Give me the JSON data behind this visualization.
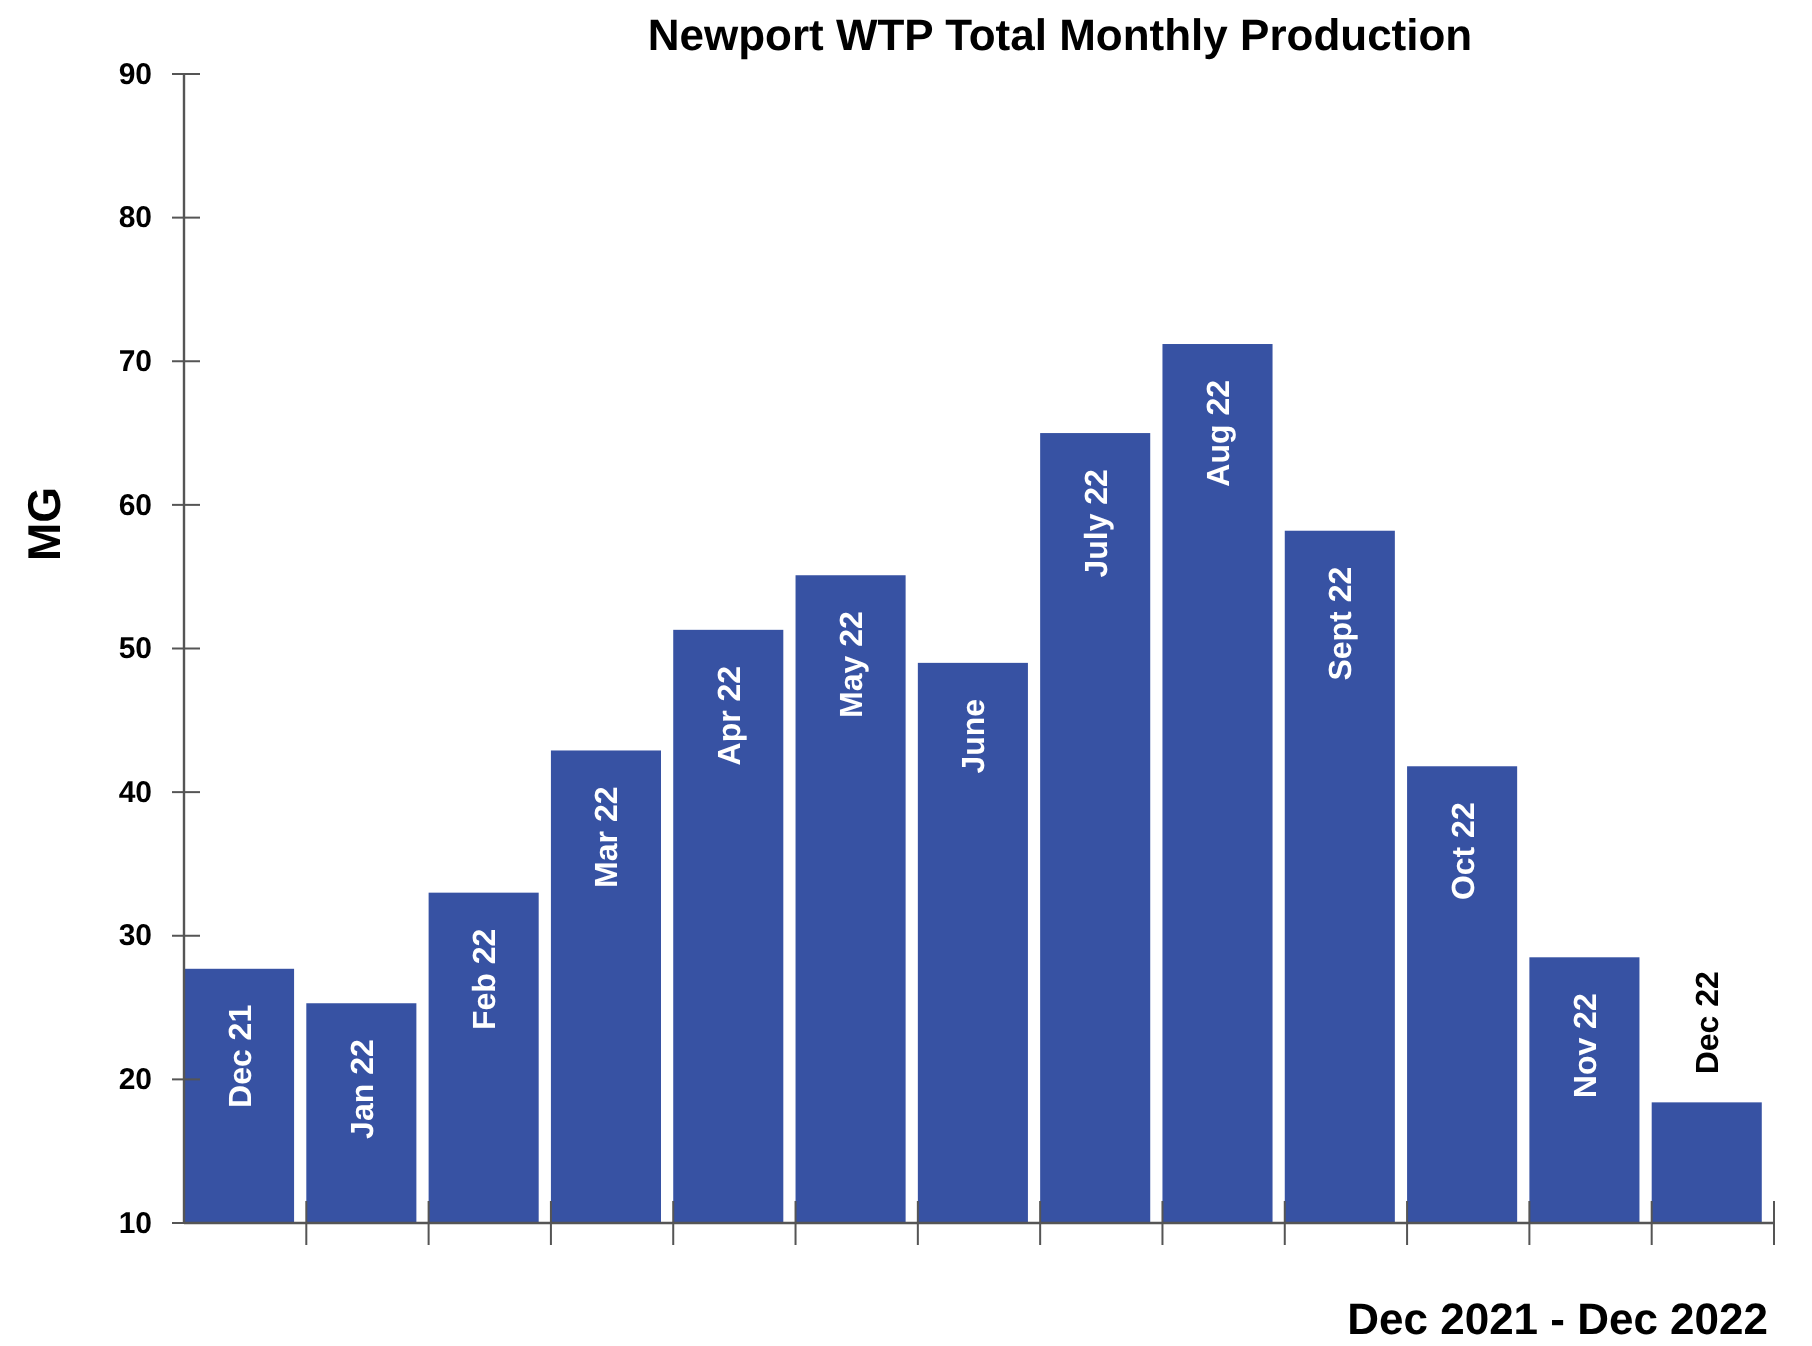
{
  "chart_data": {
    "type": "bar",
    "title": "Newport WTP Total Monthly Production",
    "xlabel": "Dec 2021 - Dec 2022",
    "ylabel": "MG",
    "categories": [
      "Dec 21",
      "Jan 22",
      "Feb 22",
      "Mar 22",
      "Apr 22",
      "May 22",
      "June",
      "July 22",
      "Aug 22",
      "Sept 22",
      "Oct 22",
      "Nov 22",
      "Dec 22"
    ],
    "values": [
      27.7,
      25.3,
      33.0,
      42.9,
      51.3,
      55.1,
      49.0,
      65.0,
      71.2,
      58.2,
      41.8,
      28.5,
      18.4
    ],
    "color": "#3752a3",
    "ylim": [
      10,
      90
    ],
    "yticks": [
      10,
      20,
      30,
      40,
      50,
      60,
      70,
      80,
      90
    ]
  }
}
